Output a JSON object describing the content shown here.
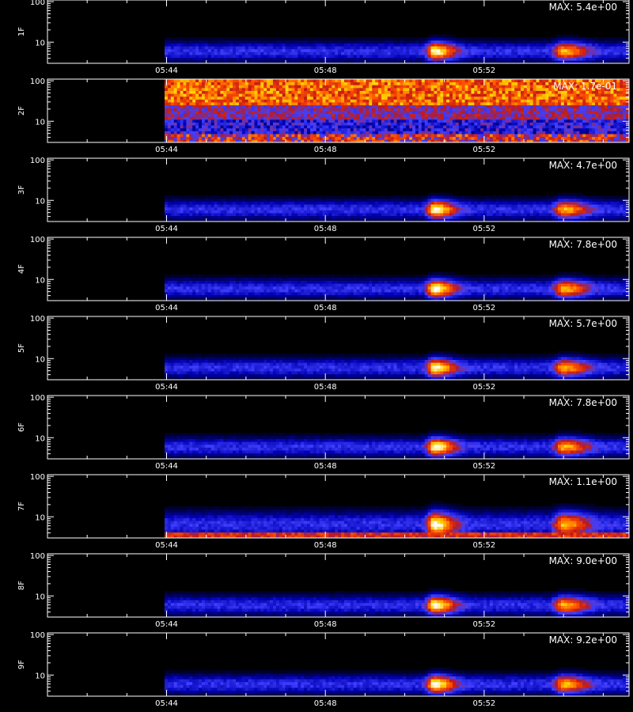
{
  "chart_data": {
    "type": "heatmap",
    "x_tick_labels": [
      "05:44",
      "05:48",
      "05:52"
    ],
    "x_ticks_minutes": [
      44,
      48,
      52
    ],
    "x_range_minutes": [
      41,
      55.65
    ],
    "y_scale": "log",
    "y_range": [
      3,
      110
    ],
    "y_tick_labels": [
      "10",
      "100"
    ],
    "y_ticks": [
      10,
      100
    ],
    "colormap": [
      "#000000",
      "#0000b4",
      "#4040ff",
      "#c01818",
      "#ff5000",
      "#ffd000",
      "#ffffff"
    ],
    "data_start_minute": 43.95,
    "bursts_minutes": [
      {
        "center": 50.75,
        "width": 0.5,
        "strength": 1.0
      },
      {
        "center": 54.0,
        "width": 0.6,
        "strength": 0.75
      }
    ],
    "panels": [
      {
        "label": "1F",
        "max_text": "MAX: 5.4e+00",
        "profile": "narrow"
      },
      {
        "label": "2F",
        "max_text": "MAX: 1.7e-01",
        "profile": "noisy"
      },
      {
        "label": "3F",
        "max_text": "MAX: 4.7e+00",
        "profile": "narrow"
      },
      {
        "label": "4F",
        "max_text": "MAX: 7.8e+00",
        "profile": "narrow"
      },
      {
        "label": "5F",
        "max_text": "MAX: 5.7e+00",
        "profile": "narrow"
      },
      {
        "label": "6F",
        "max_text": "MAX: 7.8e+00",
        "profile": "narrow"
      },
      {
        "label": "7F",
        "max_text": "MAX: 1.1e+00",
        "profile": "low"
      },
      {
        "label": "8F",
        "max_text": "MAX: 9.0e+00",
        "profile": "narrow"
      },
      {
        "label": "9F",
        "max_text": "MAX: 9.2e+00",
        "profile": "narrow"
      }
    ]
  }
}
